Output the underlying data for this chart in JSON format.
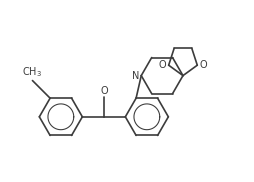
{
  "bg_color": "#ffffff",
  "line_color": "#3c3c3c",
  "text_color": "#3c3c3c",
  "line_width": 1.2,
  "font_size": 7.0,
  "fig_width": 2.55,
  "fig_height": 1.82,
  "dpi": 100,
  "xlim": [
    0.5,
    6.2
  ],
  "ylim": [
    1.6,
    5.8
  ]
}
